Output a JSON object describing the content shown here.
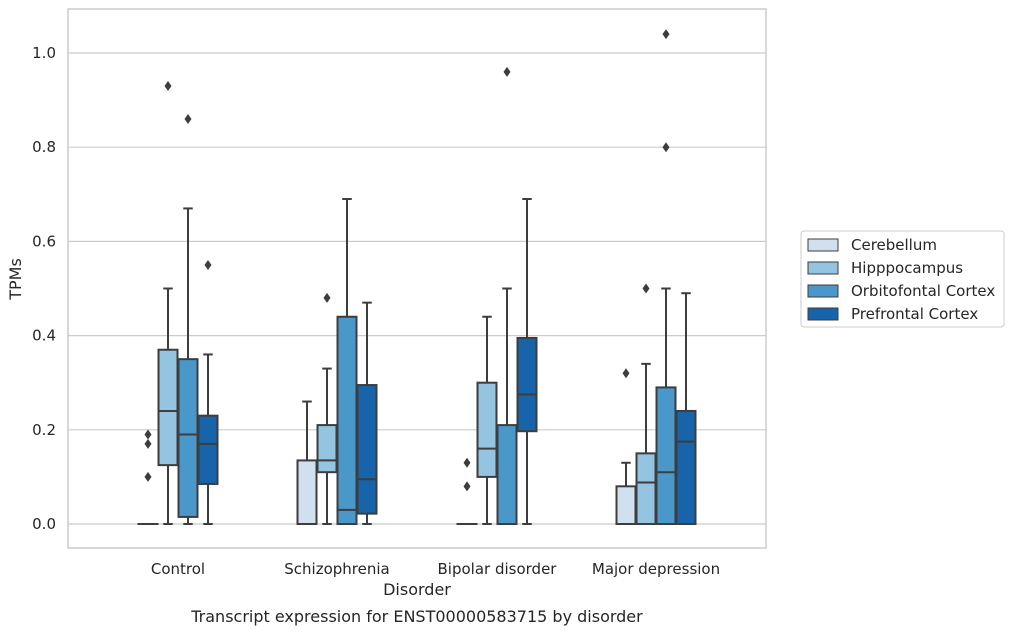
{
  "caption": "Transcript expression for ENST00000583715 by disorder",
  "chart_data": {
    "type": "box",
    "xlabel": "Disorder",
    "ylabel": "TPMs",
    "ylim": [
      -0.05,
      1.09
    ],
    "yticks": [
      0.0,
      0.2,
      0.4,
      0.6,
      0.8,
      1.0
    ],
    "ytick_labels": [
      "0.0",
      "0.2",
      "0.4",
      "0.6",
      "0.8",
      "1.0"
    ],
    "grid": "horizontal",
    "categories": [
      "Control",
      "Schizophrenia",
      "Bipolar disorder",
      "Major depression"
    ],
    "legend_position": "outside-right",
    "series": [
      {
        "name": "Cerebellum",
        "color": "#d1e0ef",
        "boxes": [
          {
            "whislo": 0.0,
            "q1": 0.0,
            "med": 0.0,
            "q3": 0.0,
            "whishi": 0.0,
            "fliers": [
              0.1,
              0.17,
              0.19
            ]
          },
          {
            "whislo": 0.0,
            "q1": 0.0,
            "med": 0.0,
            "q3": 0.135,
            "whishi": 0.26,
            "fliers": []
          },
          {
            "whislo": 0.0,
            "q1": 0.0,
            "med": 0.0,
            "q3": 0.0,
            "whishi": 0.0,
            "fliers": [
              0.08,
              0.13
            ]
          },
          {
            "whislo": 0.0,
            "q1": 0.0,
            "med": 0.0,
            "q3": 0.08,
            "whishi": 0.13,
            "fliers": [
              0.32
            ]
          }
        ]
      },
      {
        "name": "Hipppocampus",
        "color": "#94c4df",
        "boxes": [
          {
            "whislo": 0.0,
            "q1": 0.125,
            "med": 0.24,
            "q3": 0.37,
            "whishi": 0.5,
            "fliers": [
              0.93
            ]
          },
          {
            "whislo": 0.0,
            "q1": 0.11,
            "med": 0.135,
            "q3": 0.21,
            "whishi": 0.33,
            "fliers": [
              0.48
            ]
          },
          {
            "whislo": 0.0,
            "q1": 0.1,
            "med": 0.16,
            "q3": 0.3,
            "whishi": 0.44,
            "fliers": []
          },
          {
            "whislo": 0.0,
            "q1": 0.0,
            "med": 0.088,
            "q3": 0.15,
            "whishi": 0.34,
            "fliers": [
              0.5
            ]
          }
        ]
      },
      {
        "name": "Orbitofontal Cortex",
        "color": "#4a98c9",
        "boxes": [
          {
            "whislo": 0.0,
            "q1": 0.015,
            "med": 0.19,
            "q3": 0.35,
            "whishi": 0.67,
            "fliers": [
              0.86
            ]
          },
          {
            "whislo": 0.0,
            "q1": 0.0,
            "med": 0.03,
            "q3": 0.44,
            "whishi": 0.69,
            "fliers": []
          },
          {
            "whislo": 0.0,
            "q1": 0.0,
            "med": 0.0,
            "q3": 0.21,
            "whishi": 0.5,
            "fliers": [
              0.96
            ]
          },
          {
            "whislo": 0.0,
            "q1": 0.0,
            "med": 0.11,
            "q3": 0.29,
            "whishi": 0.5,
            "fliers": [
              0.8,
              1.04
            ]
          }
        ]
      },
      {
        "name": "Prefrontal Cortex",
        "color": "#1764ab",
        "boxes": [
          {
            "whislo": 0.0,
            "q1": 0.085,
            "med": 0.17,
            "q3": 0.23,
            "whishi": 0.36,
            "fliers": [
              0.55
            ]
          },
          {
            "whislo": 0.0,
            "q1": 0.022,
            "med": 0.095,
            "q3": 0.295,
            "whishi": 0.47,
            "fliers": []
          },
          {
            "whislo": 0.0,
            "q1": 0.197,
            "med": 0.275,
            "q3": 0.395,
            "whishi": 0.69,
            "fliers": []
          },
          {
            "whislo": 0.0,
            "q1": 0.0,
            "med": 0.175,
            "q3": 0.24,
            "whishi": 0.49,
            "fliers": []
          }
        ]
      }
    ]
  }
}
